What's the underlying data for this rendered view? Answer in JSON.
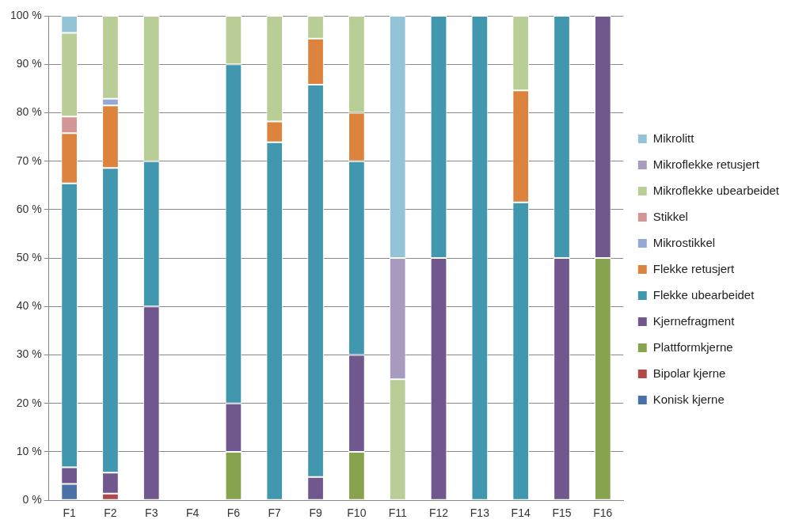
{
  "chart_data": {
    "type": "bar",
    "stacked": true,
    "legend": "right",
    "grid": "y",
    "categories": [
      "F1",
      "F2",
      "F3",
      "F4",
      "F6",
      "F7",
      "F9",
      "F10",
      "F11",
      "F12",
      "F13",
      "F14",
      "F15",
      "F16"
    ],
    "ylim": [
      0,
      100
    ],
    "yticks": [
      {
        "value": 0,
        "label": "0 %"
      },
      {
        "value": 10,
        "label": "10 %"
      },
      {
        "value": 20,
        "label": "20 %"
      },
      {
        "value": 30,
        "label": "30 %"
      },
      {
        "value": 40,
        "label": "40 %"
      },
      {
        "value": 50,
        "label": "50 %"
      },
      {
        "value": 60,
        "label": "60 %"
      },
      {
        "value": 70,
        "label": "70 %"
      },
      {
        "value": 80,
        "label": "80 %"
      },
      {
        "value": 90,
        "label": "90 %"
      },
      {
        "value": 100,
        "label": "100 %"
      }
    ],
    "series": [
      {
        "name": "Konisk kjerne",
        "color": "#4a72a8",
        "values": [
          3.4,
          0,
          0,
          null,
          0,
          0,
          0,
          0,
          0,
          0,
          0,
          0,
          0,
          0
        ]
      },
      {
        "name": "Bipolar kjerne",
        "color": "#b04a48",
        "values": [
          0,
          1.4,
          0,
          null,
          0,
          0,
          0,
          0,
          0,
          0,
          0,
          0,
          0,
          0
        ]
      },
      {
        "name": "Plattformkjerne",
        "color": "#88a34d",
        "values": [
          0,
          0,
          0,
          null,
          10,
          0,
          0,
          10,
          0,
          0,
          0,
          0,
          0,
          50
        ]
      },
      {
        "name": "Kjernefragment",
        "color": "#70588f",
        "values": [
          3.4,
          4.3,
          40,
          null,
          10,
          0,
          4.8,
          20,
          0,
          50,
          0,
          0,
          50,
          50
        ]
      },
      {
        "name": "Flekke ubearbeidet",
        "color": "#4197ae",
        "values": [
          58.6,
          62.9,
          30,
          null,
          70,
          73.9,
          81,
          40,
          0,
          50,
          100,
          61.5,
          50,
          0
        ]
      },
      {
        "name": "Flekke retusjert",
        "color": "#dc843d",
        "values": [
          10.4,
          12.9,
          0,
          null,
          0,
          4.3,
          9.5,
          10,
          0,
          0,
          0,
          23.1,
          0,
          0
        ]
      },
      {
        "name": "Mikrostikkel",
        "color": "#94aad4",
        "values": [
          0,
          1.4,
          0,
          null,
          0,
          0,
          0,
          0,
          0,
          0,
          0,
          0,
          0,
          0
        ]
      },
      {
        "name": "Stikkel",
        "color": "#d49595",
        "values": [
          3.4,
          0,
          0,
          null,
          0,
          0,
          0,
          0,
          0,
          0,
          0,
          0,
          0,
          0
        ]
      },
      {
        "name": "Mikroflekke ubearbeidet",
        "color": "#b9cd96",
        "values": [
          17.3,
          17.1,
          30,
          null,
          10,
          21.8,
          4.7,
          20,
          25,
          0,
          0,
          15.4,
          0,
          0
        ]
      },
      {
        "name": "Mikroflekke retusjert",
        "color": "#a99bc0",
        "values": [
          0,
          0,
          0,
          null,
          0,
          0,
          0,
          0,
          25,
          0,
          0,
          0,
          0,
          0
        ]
      },
      {
        "name": "Mikrolitt",
        "color": "#93c3d6",
        "values": [
          3.5,
          0,
          0,
          null,
          0,
          0,
          0,
          0,
          50,
          0,
          0,
          0,
          0,
          0
        ]
      }
    ]
  }
}
